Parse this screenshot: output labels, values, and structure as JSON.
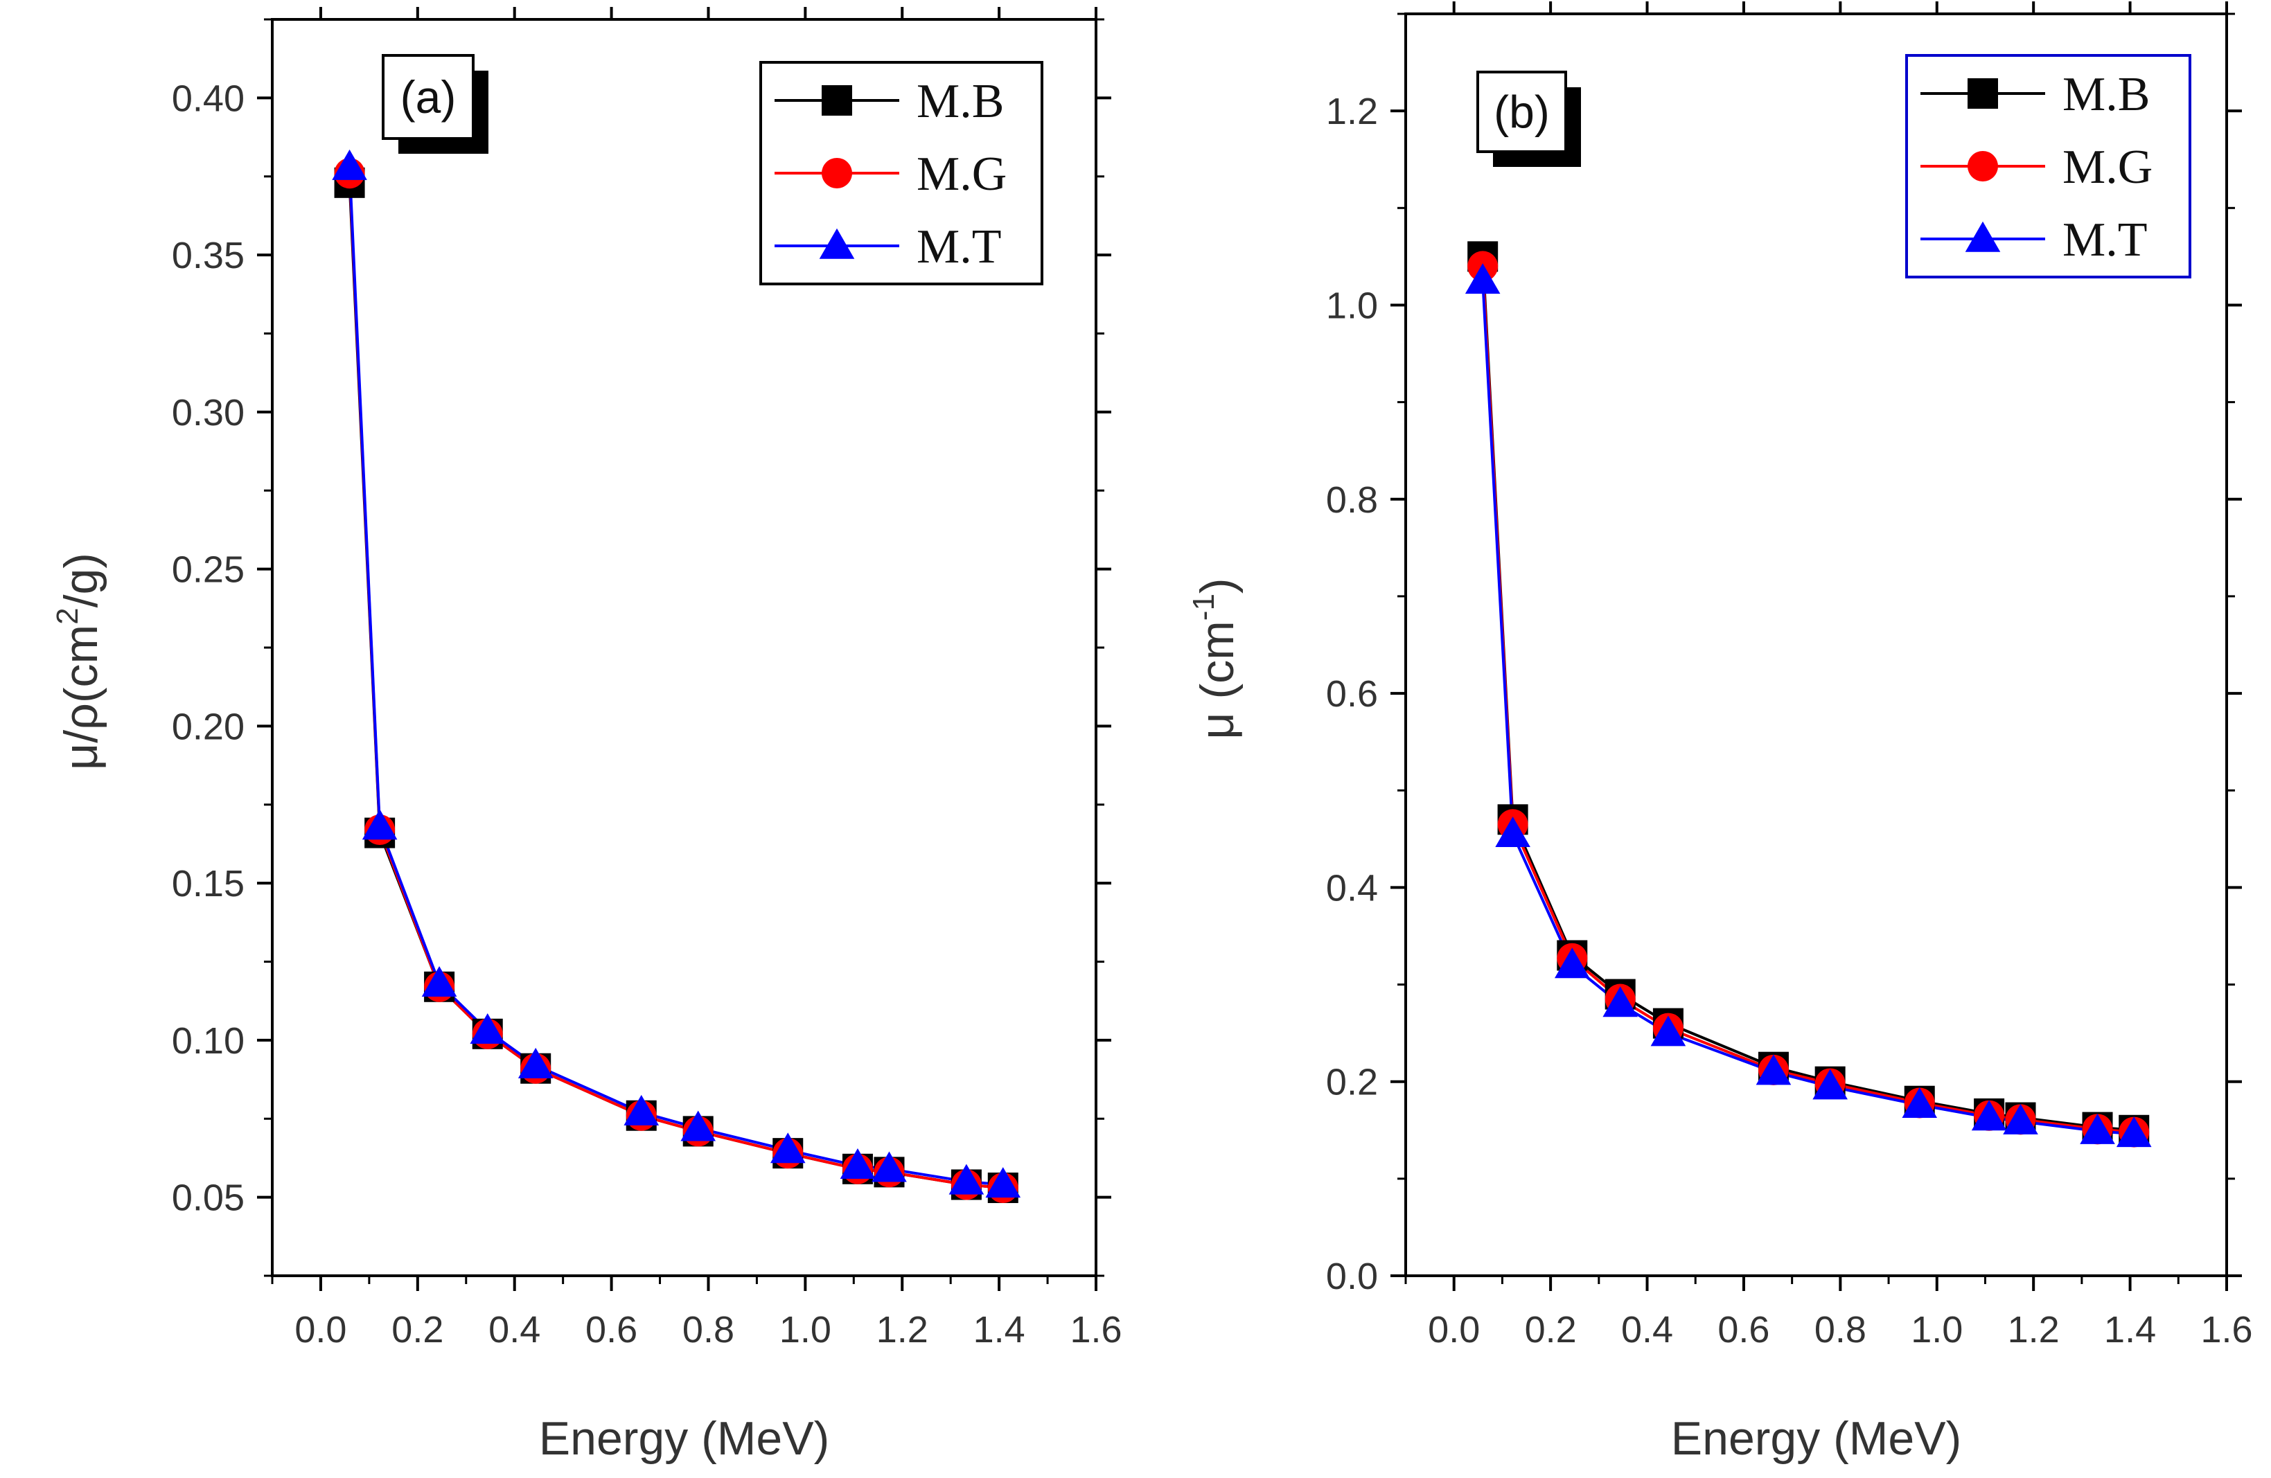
{
  "chart_data": [
    {
      "type": "line",
      "panel_label": "(a)",
      "xlabel": "Energy (MeV)",
      "ylabel_parts": {
        "main": "μ/ρ(cm",
        "sup": "2",
        "tail": "/g)"
      },
      "xlim": [
        -0.1,
        1.6
      ],
      "ylim": [
        0.025,
        0.425
      ],
      "xticks": [
        0.0,
        0.2,
        0.4,
        0.6,
        0.8,
        1.0,
        1.2,
        1.4,
        1.6
      ],
      "xtick_labels": [
        "0.0",
        "0.2",
        "0.4",
        "0.6",
        "0.8",
        "1.0",
        "1.2",
        "1.4",
        "1.6"
      ],
      "yticks": [
        0.05,
        0.1,
        0.15,
        0.2,
        0.25,
        0.3,
        0.35,
        0.4
      ],
      "ytick_labels": [
        "0.05",
        "0.10",
        "0.15",
        "0.20",
        "0.25",
        "0.30",
        "0.35",
        "0.40"
      ],
      "x": [
        0.0595,
        0.1218,
        0.2447,
        0.3443,
        0.4436,
        0.6617,
        0.7789,
        0.9641,
        1.1081,
        1.1732,
        1.3325,
        1.4081
      ],
      "series": [
        {
          "name": "M.B",
          "marker": "square",
          "color": "#000000",
          "values": [
            0.373,
            0.166,
            0.117,
            0.102,
            0.091,
            0.076,
            0.071,
            0.064,
            0.059,
            0.058,
            0.054,
            0.053
          ]
        },
        {
          "name": "M.G",
          "marker": "circle",
          "color": "#ff0000",
          "values": [
            0.376,
            0.167,
            0.117,
            0.102,
            0.091,
            0.076,
            0.071,
            0.064,
            0.059,
            0.058,
            0.054,
            0.053
          ]
        },
        {
          "name": "M.T",
          "marker": "triangle",
          "color": "#0000ff",
          "values": [
            0.378,
            0.168,
            0.118,
            0.103,
            0.092,
            0.077,
            0.072,
            0.065,
            0.06,
            0.059,
            0.055,
            0.054
          ]
        }
      ],
      "legend": "top-right",
      "legend_border_color": "#000000"
    },
    {
      "type": "line",
      "panel_label": "(b)",
      "xlabel": "Energy (MeV)",
      "ylabel_parts": {
        "main": "μ (cm",
        "sup": "-1",
        "tail": ")"
      },
      "xlim": [
        -0.1,
        1.6
      ],
      "ylim": [
        0.0,
        1.3
      ],
      "xticks": [
        0.0,
        0.2,
        0.4,
        0.6,
        0.8,
        1.0,
        1.2,
        1.4,
        1.6
      ],
      "xtick_labels": [
        "0.0",
        "0.2",
        "0.4",
        "0.6",
        "0.8",
        "1.0",
        "1.2",
        "1.4",
        "1.6"
      ],
      "yticks": [
        0.0,
        0.2,
        0.4,
        0.6,
        0.8,
        1.0,
        1.2
      ],
      "ytick_labels": [
        "0.0",
        "0.2",
        "0.4",
        "0.6",
        "0.8",
        "1.0",
        "1.2"
      ],
      "x": [
        0.0595,
        0.1218,
        0.2447,
        0.3443,
        0.4436,
        0.6617,
        0.7789,
        0.9641,
        1.1081,
        1.1732,
        1.3325,
        1.4081
      ],
      "series": [
        {
          "name": "M.B",
          "marker": "square",
          "color": "#000000",
          "values": [
            1.05,
            0.47,
            0.33,
            0.29,
            0.26,
            0.215,
            0.2,
            0.18,
            0.167,
            0.163,
            0.153,
            0.15
          ]
        },
        {
          "name": "M.G",
          "marker": "circle",
          "color": "#ff0000",
          "values": [
            1.04,
            0.465,
            0.327,
            0.285,
            0.255,
            0.212,
            0.198,
            0.178,
            0.165,
            0.161,
            0.151,
            0.148
          ]
        },
        {
          "name": "M.T",
          "marker": "triangle",
          "color": "#0000ff",
          "values": [
            1.025,
            0.455,
            0.32,
            0.28,
            0.25,
            0.21,
            0.195,
            0.176,
            0.163,
            0.159,
            0.149,
            0.146
          ]
        }
      ],
      "legend": "top-right",
      "legend_border_color": "#0000cc"
    }
  ]
}
